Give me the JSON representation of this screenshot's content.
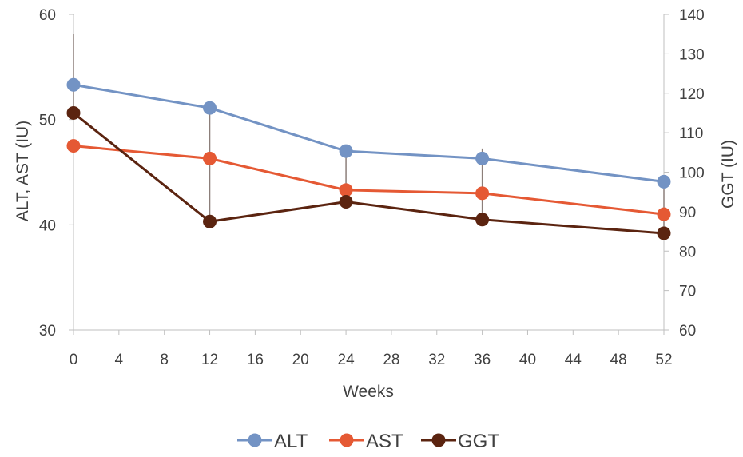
{
  "chart_data": {
    "type": "line",
    "title": "",
    "xlabel": "Weeks",
    "ylabel_left": "ALT, AST (IU)",
    "ylabel_right": "GGT (IU)",
    "x_ticks": [
      0,
      4,
      8,
      12,
      16,
      20,
      24,
      28,
      32,
      36,
      40,
      44,
      48,
      52
    ],
    "xlim": [
      0,
      52
    ],
    "y_left": {
      "lim": [
        30,
        60
      ],
      "ticks": [
        30,
        40,
        50,
        60
      ]
    },
    "y_right": {
      "lim": [
        60,
        140
      ],
      "ticks": [
        60,
        70,
        80,
        90,
        100,
        110,
        120,
        130,
        140
      ]
    },
    "grid": false,
    "legend_position": "bottom",
    "series": [
      {
        "name": "ALT",
        "axis": "left",
        "color": "#7393c4",
        "x": [
          0,
          12,
          24,
          36,
          52
        ],
        "y": [
          53.3,
          51.1,
          47.0,
          46.3,
          44.1
        ]
      },
      {
        "name": "AST",
        "axis": "left",
        "color": "#e55934",
        "x": [
          0,
          12,
          24,
          36,
          52
        ],
        "y": [
          47.5,
          46.3,
          43.3,
          43.0,
          41.0
        ]
      },
      {
        "name": "GGT",
        "axis": "right",
        "color": "#5b2410",
        "x": [
          0,
          12,
          24,
          36,
          52
        ],
        "y": [
          115,
          87.5,
          92.5,
          88.0,
          84.5
        ],
        "error_upper": [
          135,
          116,
          106,
          106,
          98
        ]
      }
    ]
  }
}
